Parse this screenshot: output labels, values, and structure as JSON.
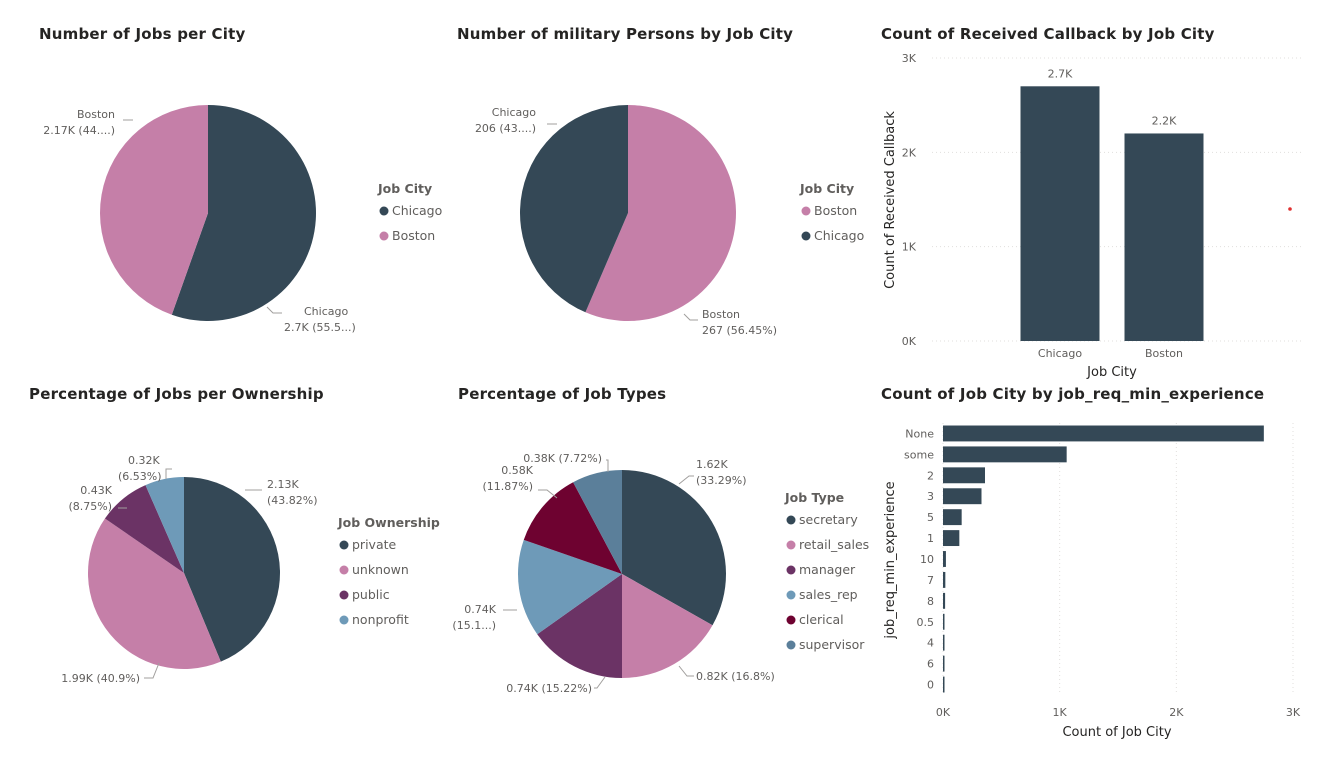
{
  "colors": {
    "dark": "#344856",
    "pink": "#C57FA8",
    "purple": "#6B3365",
    "blue": "#6E9AB8",
    "maroon": "#6E0230",
    "steel": "#5B7F9A"
  },
  "chart_data": [
    {
      "id": "jobs-per-city",
      "type": "pie",
      "title": "Number of Jobs per City",
      "legend_title": "Job City",
      "legend_position": "right",
      "legend": [
        "Chicago",
        "Boston"
      ],
      "slices": [
        {
          "name": "Chicago",
          "value": 2700,
          "percent": 55.5,
          "color": "#344856",
          "label_name": "Chicago",
          "label_value": "2.7K (55.5...)"
        },
        {
          "name": "Boston",
          "value": 2170,
          "percent": 44.5,
          "color": "#C57FA8",
          "label_name": "Boston",
          "label_value": "2.17K (44....)"
        }
      ]
    },
    {
      "id": "military-by-city",
      "type": "pie",
      "title": "Number of military Persons by Job City",
      "legend_title": "Job City",
      "legend_position": "right",
      "legend": [
        "Boston",
        "Chicago"
      ],
      "slices": [
        {
          "name": "Boston",
          "value": 267,
          "percent": 56.45,
          "color": "#C57FA8",
          "label_name": "Boston",
          "label_value": "267 (56.45%)"
        },
        {
          "name": "Chicago",
          "value": 206,
          "percent": 43.55,
          "color": "#344856",
          "label_name": "Chicago",
          "label_value": "206 (43....)"
        }
      ]
    },
    {
      "id": "callback-by-city",
      "type": "bar",
      "title": "Count of Received Callback by Job City",
      "xlabel": "Job City",
      "ylabel": "Count of Received Callback",
      "categories": [
        "Chicago",
        "Boston"
      ],
      "values": [
        2700,
        2200
      ],
      "data_labels": [
        "2.7K",
        "2.2K"
      ],
      "ylim": [
        0,
        3000
      ],
      "yticks": [
        "0K",
        "1K",
        "2K",
        "3K"
      ],
      "grid": true
    },
    {
      "id": "jobs-per-ownership",
      "type": "pie",
      "title": "Percentage of Jobs per Ownership",
      "legend_title": "Job Ownership",
      "legend_position": "right",
      "legend": [
        "private",
        "unknown",
        "public",
        "nonprofit"
      ],
      "slices": [
        {
          "name": "private",
          "value": 2130,
          "percent": 43.82,
          "color": "#344856",
          "label_lines": [
            "2.13K",
            "(43.82%)"
          ]
        },
        {
          "name": "unknown",
          "value": 1990,
          "percent": 40.9,
          "color": "#C57FA8",
          "label_lines": [
            "1.99K (40.9%)"
          ]
        },
        {
          "name": "public",
          "value": 430,
          "percent": 8.75,
          "color": "#6B3365",
          "label_lines": [
            "0.43K",
            "(8.75%)"
          ]
        },
        {
          "name": "nonprofit",
          "value": 320,
          "percent": 6.53,
          "color": "#6E9AB8",
          "label_lines": [
            "0.32K",
            "(6.53%)"
          ]
        }
      ]
    },
    {
      "id": "job-types",
      "type": "pie",
      "title": "Percentage of Job Types",
      "legend_title": "Job Type",
      "legend_position": "right",
      "legend": [
        "secretary",
        "retail_sales",
        "manager",
        "sales_rep",
        "clerical",
        "supervisor"
      ],
      "slices": [
        {
          "name": "secretary",
          "value": 1620,
          "percent": 33.29,
          "color": "#344856",
          "label_lines": [
            "1.62K",
            "(33.29%)"
          ]
        },
        {
          "name": "retail_sales",
          "value": 820,
          "percent": 16.8,
          "color": "#C57FA8",
          "label_lines": [
            "0.82K (16.8%)"
          ]
        },
        {
          "name": "manager",
          "value": 740,
          "percent": 15.22,
          "color": "#6B3365",
          "label_lines": [
            "0.74K (15.22%)"
          ]
        },
        {
          "name": "sales_rep",
          "value": 740,
          "percent": 15.1,
          "color": "#6E9AB8",
          "label_lines": [
            "0.74K",
            "(15.1...)"
          ]
        },
        {
          "name": "clerical",
          "value": 580,
          "percent": 11.87,
          "color": "#6E0230",
          "label_lines": [
            "0.58K",
            "(11.87%)"
          ]
        },
        {
          "name": "supervisor",
          "value": 380,
          "percent": 7.72,
          "color": "#5B7F9A",
          "label_lines": [
            "0.38K (7.72%)"
          ]
        }
      ]
    },
    {
      "id": "experience",
      "type": "bar",
      "orientation": "horizontal",
      "title": "Count of Job City by job_req_min_experience",
      "xlabel": "Count of Job City",
      "ylabel": "job_req_min_experience",
      "categories": [
        "None",
        "some",
        "2",
        "3",
        "5",
        "1",
        "10",
        "7",
        "8",
        "0.5",
        "4",
        "6",
        "0"
      ],
      "values": [
        2750,
        1060,
        360,
        330,
        160,
        140,
        25,
        20,
        18,
        10,
        8,
        6,
        4
      ],
      "xlim": [
        0,
        3000
      ],
      "xticks": [
        "0K",
        "1K",
        "2K",
        "3K"
      ],
      "grid": true
    }
  ]
}
